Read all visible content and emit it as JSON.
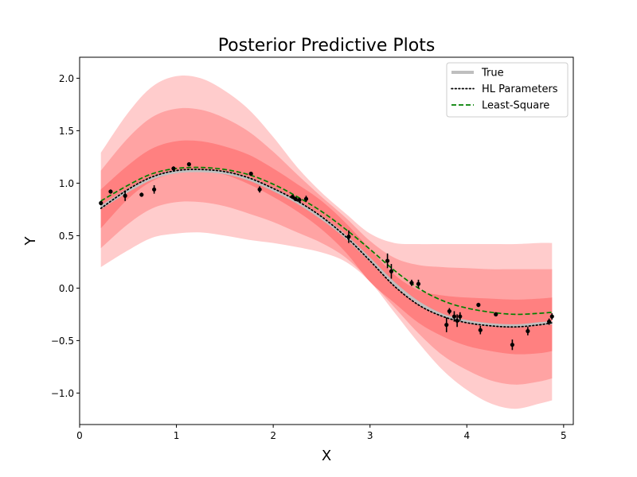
{
  "chart_data": {
    "type": "line",
    "title": "Posterior Predictive Plots",
    "xlabel": "X",
    "ylabel": "Y",
    "xlim": [
      0.0,
      5.1
    ],
    "ylim": [
      -1.3,
      2.2
    ],
    "xticks": [
      0,
      1,
      2,
      3,
      4,
      5
    ],
    "yticks": [
      -1.0,
      -0.5,
      0.0,
      0.5,
      1.0,
      1.5,
      2.0
    ],
    "xtick_labels": [
      "0",
      "1",
      "2",
      "3",
      "4",
      "5"
    ],
    "ytick_labels": [
      "−1.0",
      "−0.5",
      "0.0",
      "0.5",
      "1.0",
      "1.5",
      "2.0"
    ],
    "grid": false,
    "legend_position": "top-right",
    "x": [
      0.22,
      0.5,
      0.75,
      1.0,
      1.25,
      1.5,
      1.75,
      2.0,
      2.25,
      2.5,
      2.75,
      3.0,
      3.25,
      3.5,
      3.75,
      4.0,
      4.25,
      4.5,
      4.75,
      4.88
    ],
    "bands": [
      {
        "color": "#ffcccc",
        "upper": [
          1.29,
          1.67,
          1.92,
          2.02,
          2.0,
          1.88,
          1.7,
          1.44,
          1.15,
          0.91,
          0.71,
          0.52,
          0.43,
          0.42,
          0.42,
          0.42,
          0.42,
          0.42,
          0.43,
          0.43
        ],
        "lower": [
          0.2,
          0.36,
          0.48,
          0.52,
          0.53,
          0.5,
          0.46,
          0.43,
          0.39,
          0.34,
          0.25,
          0.06,
          -0.23,
          -0.52,
          -0.78,
          -0.97,
          -1.1,
          -1.15,
          -1.1,
          -1.07
        ]
      },
      {
        "color": "#ffa3a3",
        "upper": [
          1.12,
          1.43,
          1.63,
          1.71,
          1.7,
          1.62,
          1.49,
          1.3,
          1.08,
          0.87,
          0.67,
          0.45,
          0.29,
          0.22,
          0.2,
          0.19,
          0.18,
          0.18,
          0.18,
          0.18
        ],
        "lower": [
          0.38,
          0.61,
          0.76,
          0.82,
          0.82,
          0.78,
          0.71,
          0.63,
          0.53,
          0.43,
          0.29,
          0.07,
          -0.18,
          -0.43,
          -0.64,
          -0.78,
          -0.88,
          -0.92,
          -0.89,
          -0.86
        ]
      },
      {
        "color": "#ff8080",
        "upper": [
          0.94,
          1.17,
          1.33,
          1.4,
          1.4,
          1.35,
          1.27,
          1.14,
          0.99,
          0.83,
          0.62,
          0.37,
          0.13,
          -0.02,
          -0.07,
          -0.09,
          -0.1,
          -0.11,
          -0.1,
          -0.09
        ],
        "lower": [
          0.57,
          0.85,
          1.02,
          1.1,
          1.12,
          1.08,
          0.99,
          0.87,
          0.73,
          0.56,
          0.34,
          0.06,
          -0.14,
          -0.33,
          -0.46,
          -0.55,
          -0.6,
          -0.63,
          -0.62,
          -0.6
        ]
      }
    ],
    "series": [
      {
        "name": "True",
        "color": "#bfbfbf",
        "style": "solid",
        "values": [
          0.77,
          0.93,
          1.05,
          1.11,
          1.12,
          1.1,
          1.04,
          0.94,
          0.82,
          0.67,
          0.49,
          0.27,
          0.04,
          -0.14,
          -0.26,
          -0.32,
          -0.35,
          -0.36,
          -0.34,
          -0.33
        ]
      },
      {
        "name": "HL Parameters",
        "color": "#000000",
        "style": "dotted",
        "values": [
          0.76,
          0.94,
          1.06,
          1.12,
          1.13,
          1.11,
          1.05,
          0.95,
          0.83,
          0.68,
          0.49,
          0.26,
          0.02,
          -0.16,
          -0.27,
          -0.33,
          -0.36,
          -0.37,
          -0.35,
          -0.33
        ]
      },
      {
        "name": "Least-Square",
        "color": "#008000",
        "style": "dashed",
        "values": [
          0.83,
          0.98,
          1.09,
          1.14,
          1.15,
          1.13,
          1.08,
          0.99,
          0.87,
          0.73,
          0.56,
          0.37,
          0.17,
          0.0,
          -0.12,
          -0.19,
          -0.23,
          -0.25,
          -0.24,
          -0.23
        ]
      }
    ],
    "observations": [
      {
        "x": 0.22,
        "y": 0.81,
        "err": 0.02
      },
      {
        "x": 0.32,
        "y": 0.92,
        "err": 0.02
      },
      {
        "x": 0.47,
        "y": 0.88,
        "err": 0.05
      },
      {
        "x": 0.64,
        "y": 0.89,
        "err": 0.02
      },
      {
        "x": 0.77,
        "y": 0.94,
        "err": 0.04
      },
      {
        "x": 0.97,
        "y": 1.14,
        "err": 0.02
      },
      {
        "x": 1.13,
        "y": 1.18,
        "err": 0.01
      },
      {
        "x": 1.77,
        "y": 1.09,
        "err": 0.01
      },
      {
        "x": 1.86,
        "y": 0.94,
        "err": 0.03
      },
      {
        "x": 2.2,
        "y": 0.87,
        "err": 0.02
      },
      {
        "x": 2.23,
        "y": 0.85,
        "err": 0.02
      },
      {
        "x": 2.27,
        "y": 0.84,
        "err": 0.02
      },
      {
        "x": 2.34,
        "y": 0.85,
        "err": 0.03
      },
      {
        "x": 2.78,
        "y": 0.49,
        "err": 0.06
      },
      {
        "x": 3.18,
        "y": 0.26,
        "err": 0.07
      },
      {
        "x": 3.22,
        "y": 0.16,
        "err": 0.07
      },
      {
        "x": 3.43,
        "y": 0.05,
        "err": 0.03
      },
      {
        "x": 3.5,
        "y": 0.04,
        "err": 0.04
      },
      {
        "x": 3.79,
        "y": -0.35,
        "err": 0.07
      },
      {
        "x": 3.82,
        "y": -0.22,
        "err": 0.03
      },
      {
        "x": 3.87,
        "y": -0.27,
        "err": 0.05
      },
      {
        "x": 3.9,
        "y": -0.31,
        "err": 0.06
      },
      {
        "x": 3.93,
        "y": -0.27,
        "err": 0.04
      },
      {
        "x": 4.12,
        "y": -0.16,
        "err": 0.02
      },
      {
        "x": 4.14,
        "y": -0.4,
        "err": 0.04
      },
      {
        "x": 4.3,
        "y": -0.25,
        "err": 0.02
      },
      {
        "x": 4.47,
        "y": -0.54,
        "err": 0.05
      },
      {
        "x": 4.63,
        "y": -0.41,
        "err": 0.04
      },
      {
        "x": 4.85,
        "y": -0.32,
        "err": 0.03
      },
      {
        "x": 4.88,
        "y": -0.27,
        "err": 0.03
      }
    ]
  }
}
